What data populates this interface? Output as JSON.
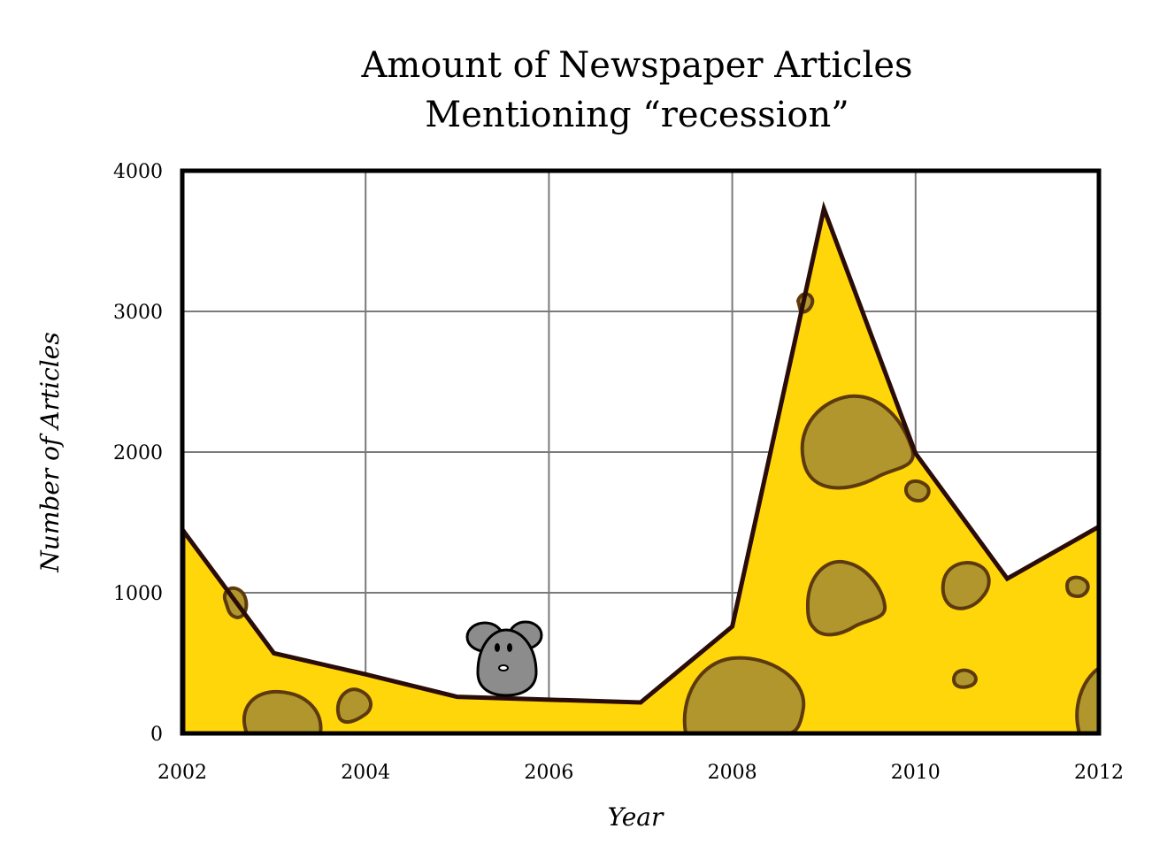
{
  "chart_data": {
    "type": "area",
    "title_lines": [
      "Amount of Newspaper Articles",
      "Mentioning “recession”"
    ],
    "xlabel": "Year",
    "ylabel": "Number of Articles",
    "x_ticks": [
      "2002",
      "2004",
      "2006",
      "2008",
      "2010",
      "2012"
    ],
    "y_ticks": [
      "0",
      "1000",
      "2000",
      "3000",
      "4000"
    ],
    "xlim": [
      2002,
      2012
    ],
    "ylim": [
      0,
      4000
    ],
    "grid": true,
    "series": [
      {
        "x": [
          2002,
          2003,
          2004,
          2005,
          2006,
          2007,
          2008,
          2009,
          2010,
          2011,
          2012
        ],
        "values": [
          1450,
          570,
          420,
          260,
          240,
          220,
          760,
          3730,
          1990,
          1100,
          1470
        ]
      }
    ]
  },
  "colors": {
    "fill": "#ffd60a",
    "outline": "#2a0c08",
    "holes": "#b0962c",
    "hole_outline": "#5c3a0e",
    "grid": "#7a7a7a",
    "mouse": "#8c8c8c"
  },
  "decorations": [
    "cheese-holes",
    "mouse-icon"
  ]
}
